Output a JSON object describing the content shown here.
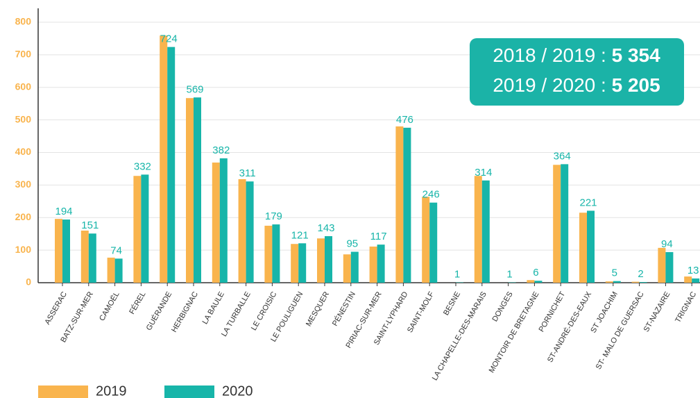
{
  "chart_data": {
    "type": "bar",
    "categories": [
      "ASSERAC",
      "BATZ-SUR-MER",
      "CAMOËL",
      "FÉREL",
      "GUÉRANDE",
      "HERBIGNAC",
      "LA BAULE",
      "LA TURBALLE",
      "LE CROISIC",
      "LE POULIGUEN",
      "MESQUER",
      "PÉNESTIN",
      "PIRIAC-SUR-MER",
      "SAINT-LYPHARD",
      "SAINT-MOLF",
      "BESNE",
      "LA CHAPELLE-DES-MARAIS",
      "DONGES",
      "MONTOIR DE BRETAGNE",
      "PORNICHET",
      "ST-ANDRÉ-DES-EAUX",
      "ST JOACHIM",
      "ST- MALO DE GUERSAC",
      "ST-NAZAIRE",
      "TRIGNAC"
    ],
    "series": [
      {
        "name": "2019",
        "color": "#f9b44d",
        "values": [
          196,
          160,
          77,
          328,
          759,
          567,
          369,
          318,
          175,
          119,
          136,
          87,
          111,
          480,
          264,
          0,
          328,
          0,
          8,
          362,
          215,
          4,
          3,
          107,
          19
        ]
      },
      {
        "name": "2020",
        "color": "#17b5a9",
        "values": [
          194,
          151,
          74,
          332,
          724,
          569,
          382,
          311,
          179,
          121,
          143,
          95,
          117,
          476,
          246,
          1,
          314,
          1,
          6,
          364,
          221,
          5,
          2,
          94,
          13
        ],
        "show_value_labels": true
      }
    ],
    "ylim": [
      0,
      800
    ],
    "yticks": [
      0,
      100,
      200,
      300,
      400,
      500,
      600,
      700,
      800
    ],
    "grid": true,
    "legend": "bottom-left",
    "annotations": [
      {
        "text": "2018 / 2019 :",
        "value": "5 354"
      },
      {
        "text": "2019 / 2020 :",
        "value": "5 205"
      }
    ],
    "annotation_color": "#1bb3a7"
  }
}
